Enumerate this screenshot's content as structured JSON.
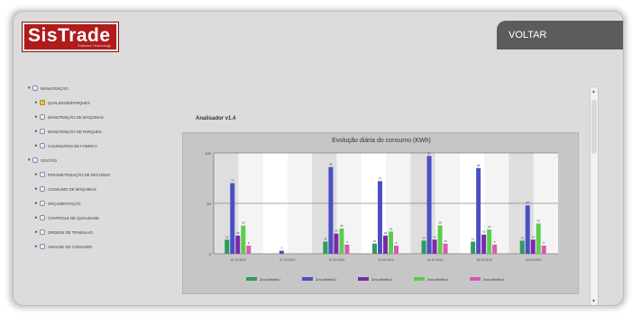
{
  "header": {
    "logo_text": "SisTrade",
    "logo_tagline": "Software Technology",
    "voltar_label": "VOLTAR"
  },
  "tree": {
    "items": [
      {
        "label": "MANUTENÇÃO",
        "expanded": true
      },
      {
        "label": "QUALIDADE/PARQUES",
        "folder": true
      },
      {
        "label": "MANUTENÇÃO DE MÁQUINAS"
      },
      {
        "label": "MANUTENÇÃO DE PARQUES"
      },
      {
        "label": "CALENDÁRIO DE FÁBRICA"
      },
      {
        "label": "GESTÃO",
        "expanded": true
      },
      {
        "label": "PARAMETRIZAÇÃO DE RECURSO"
      },
      {
        "label": "CONSUMO DE MÁQUINAS"
      },
      {
        "label": "ORÇAMENTAÇÃO"
      },
      {
        "label": "CONTROLE DE QUALIDADE"
      },
      {
        "label": "ORDENS DE TRABALHO"
      },
      {
        "label": "ANÁLISE DE CONSUMO"
      }
    ]
  },
  "module_title": "Analisador v1.4",
  "chart_data": {
    "type": "bar",
    "title": "Evolução diária do consumo (KWh)",
    "categories": [
      "10-10-2012",
      "11-10-2012",
      "12-10-2012",
      "13-10-2012",
      "14-10-2012",
      "15-10-2012",
      "16-10-2012"
    ],
    "ylim": [
      0,
      100
    ],
    "yticks": [
      "100",
      "50",
      "0"
    ],
    "grid": true,
    "legend_position": "bottom",
    "series": [
      {
        "name": "Zona Medida 1",
        "color": "#2e9a5f",
        "values": [
          14,
          0,
          12,
          10,
          13,
          12,
          13
        ]
      },
      {
        "name": "Zona Medida 2",
        "color": "#4a4fc4",
        "values": [
          70,
          3,
          86,
          72,
          97,
          85,
          48
        ]
      },
      {
        "name": "Zona Medida 3",
        "color": "#7a2aa8",
        "values": [
          18,
          0,
          20,
          18,
          14,
          19,
          14
        ]
      },
      {
        "name": "Zona Medida 4",
        "color": "#5ccc4e",
        "values": [
          28,
          0,
          25,
          22,
          28,
          24,
          30
        ]
      },
      {
        "name": "Zona Medida 5",
        "color": "#d958b6",
        "values": [
          8,
          0,
          9,
          8,
          10,
          9,
          8
        ]
      }
    ]
  }
}
